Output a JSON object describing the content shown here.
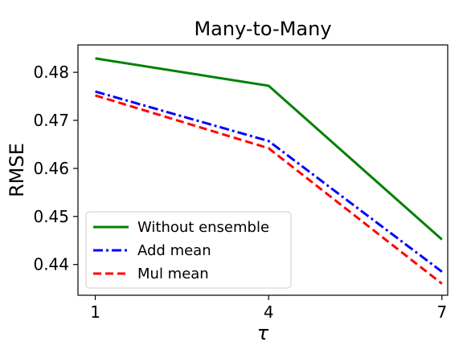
{
  "chart_data": {
    "type": "line",
    "title": "Many-to-Many",
    "xlabel": "τ",
    "ylabel": "RMSE",
    "x": [
      1,
      4,
      7
    ],
    "xticks": [
      1,
      4,
      7
    ],
    "xlim": [
      0.7,
      7.1
    ],
    "yticks": [
      0.44,
      0.45,
      0.46,
      0.47,
      0.48
    ],
    "ytick_labels": [
      "0.44",
      "0.45",
      "0.46",
      "0.47",
      "0.48"
    ],
    "ylim": [
      0.4336,
      0.4857
    ],
    "grid": false,
    "legend_position": "lower-left",
    "series": [
      {
        "name": "Without ensemble",
        "values": [
          0.4829,
          0.4772,
          0.4452
        ],
        "color": "#008000",
        "style": "solid"
      },
      {
        "name": "Add mean",
        "values": [
          0.476,
          0.4657,
          0.4385
        ],
        "color": "#0000ff",
        "style": "dashdot"
      },
      {
        "name": "Mul mean",
        "values": [
          0.4752,
          0.4642,
          0.436
        ],
        "color": "#ff0000",
        "style": "dashed"
      }
    ]
  }
}
